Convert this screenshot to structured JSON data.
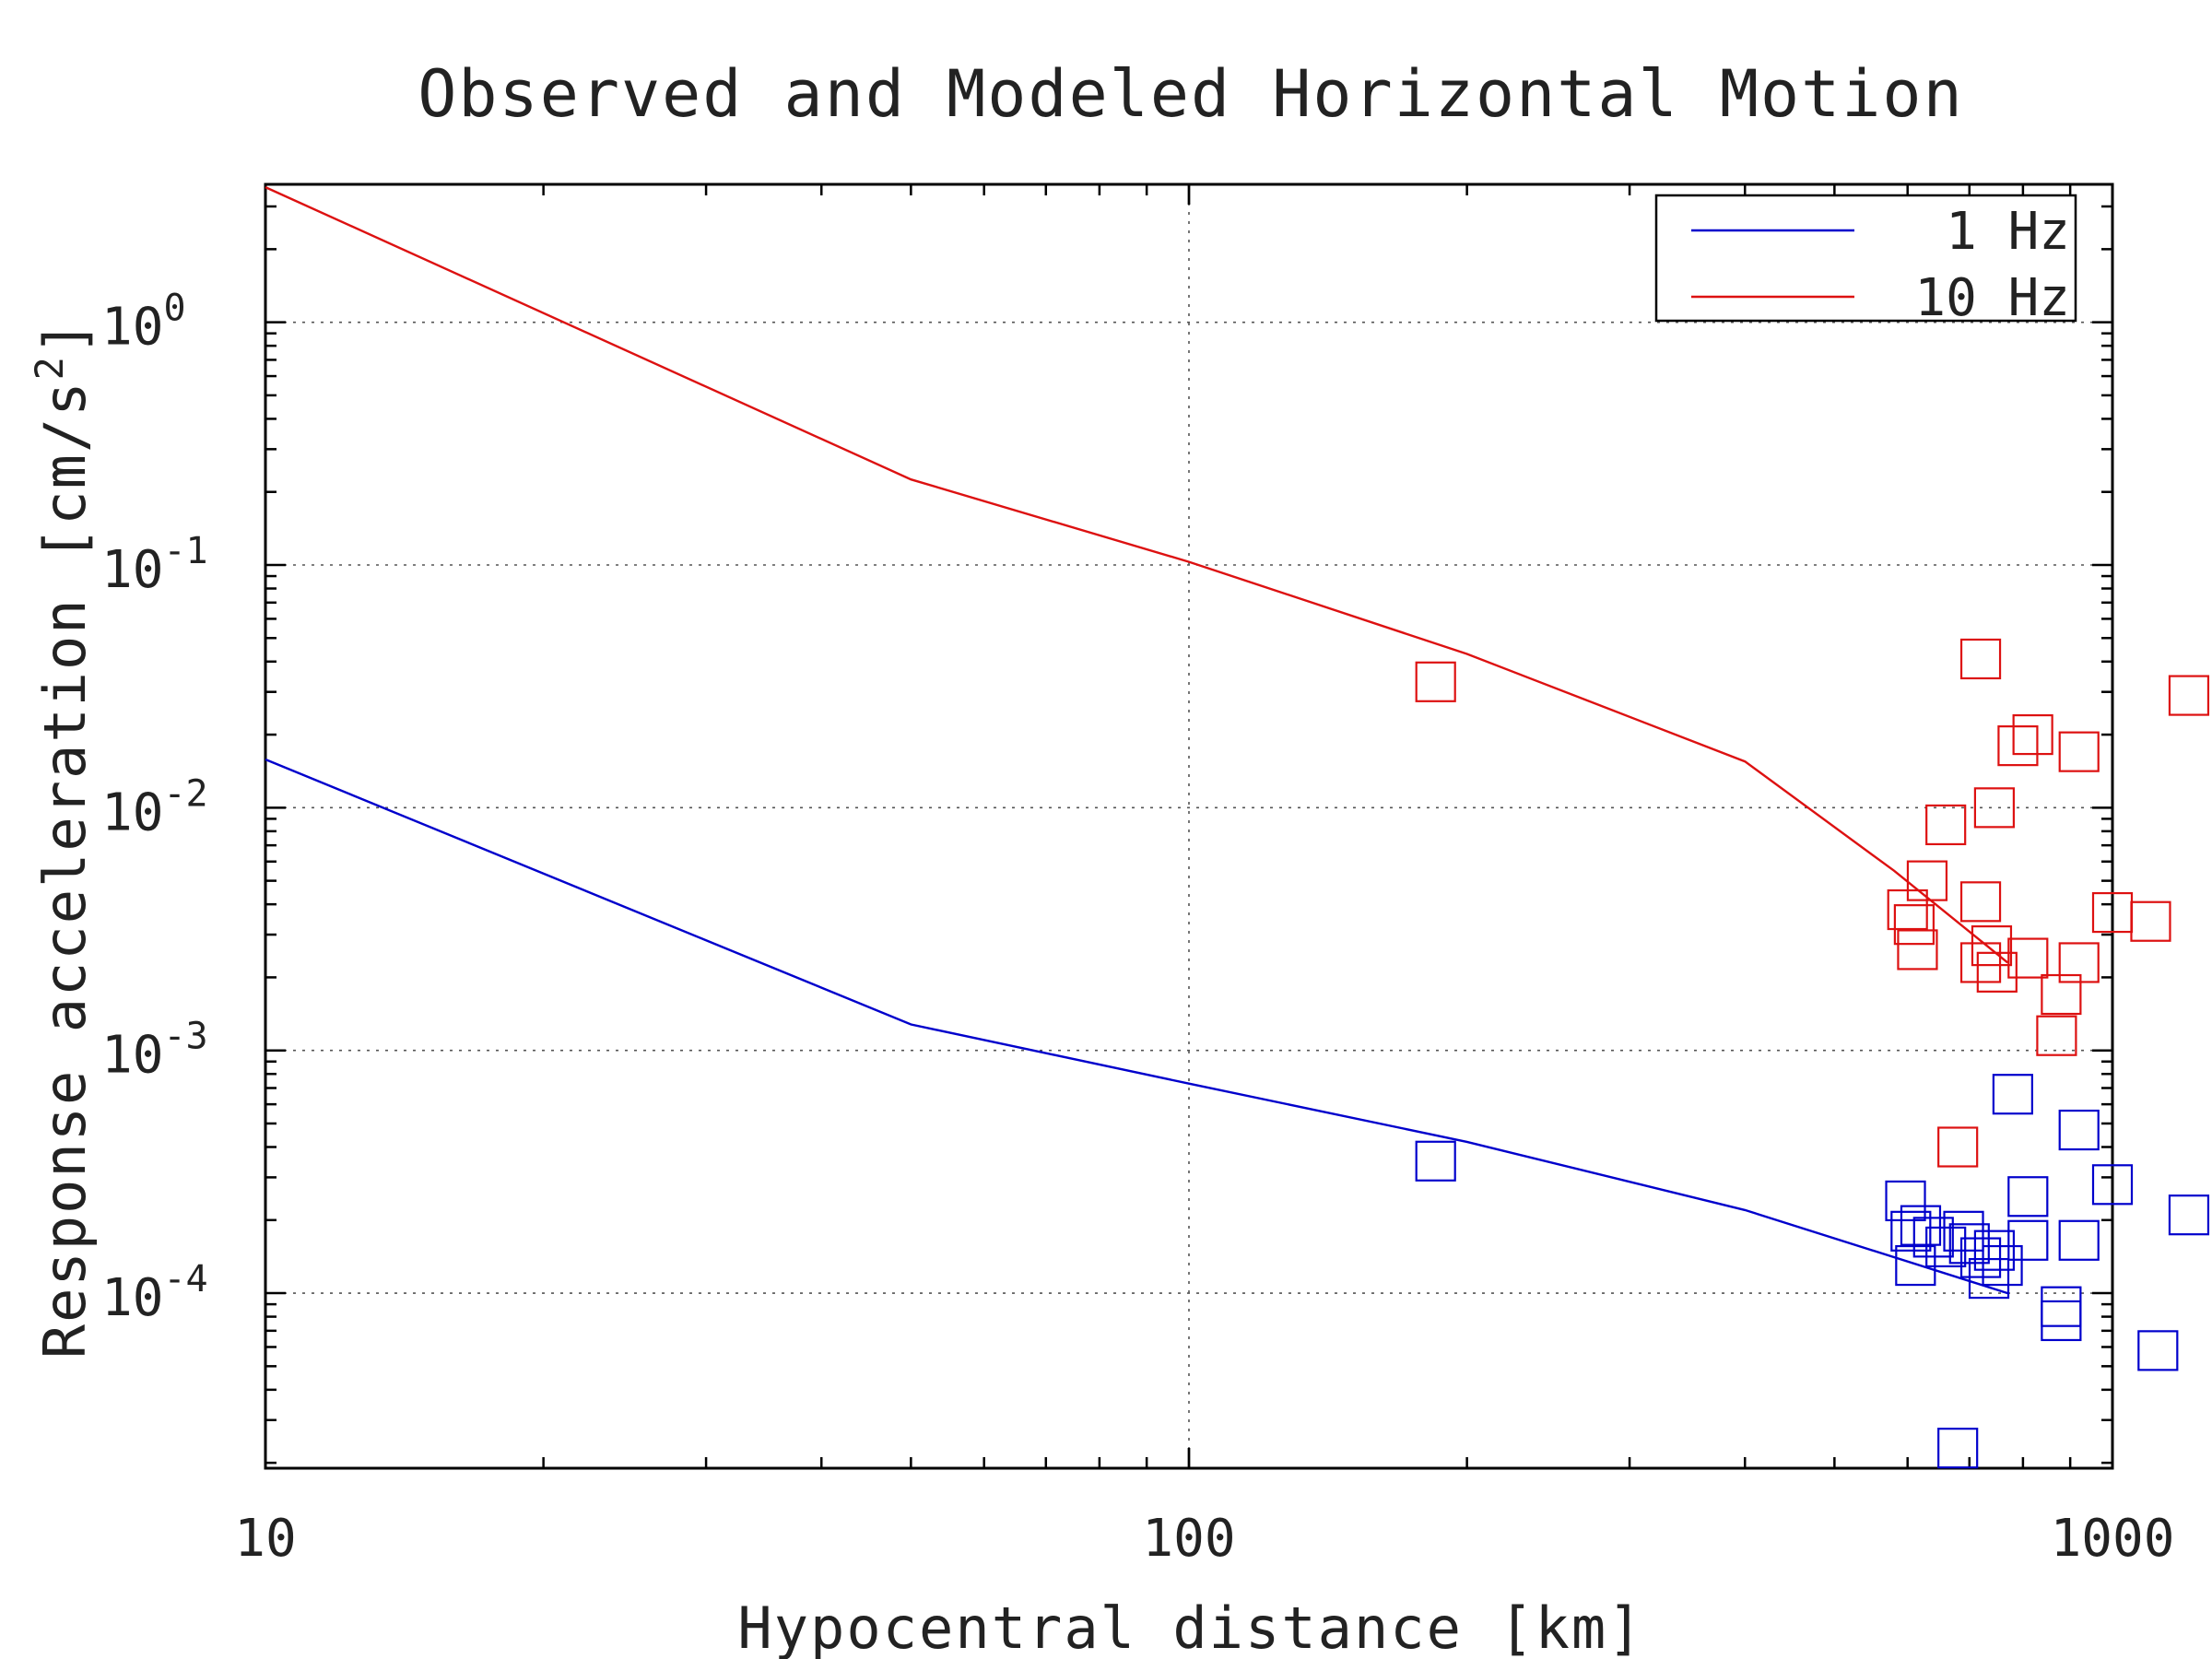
{
  "chart_data": {
    "type": "scatter",
    "title": "Observed and Modeled Horizontal Motion",
    "xlabel": "Hypocentral distance [km]",
    "ylabel": "Response acceleration [cm/s",
    "ylabel_sup": "2",
    "ylabel_end": "]",
    "x_scale": "log",
    "y_scale": "log",
    "xlim": [
      10,
      1000
    ],
    "ylim": [
      1.9e-05,
      3.7
    ],
    "grid": true,
    "legend_position": "top-right",
    "x_ticks": [
      "10",
      "100",
      "1000"
    ],
    "y_ticks": [
      {
        "base": "10",
        "exp": "0",
        "value": 1
      },
      {
        "base": "10",
        "exp": "-1",
        "value": 0.1
      },
      {
        "base": "10",
        "exp": "-2",
        "value": 0.01
      },
      {
        "base": "10",
        "exp": "-3",
        "value": 0.001
      },
      {
        "base": "10",
        "exp": "-4",
        "value": 0.0001
      }
    ],
    "series": [
      {
        "name": "1 Hz",
        "color": "#0000cc",
        "model_line": [
          [
            10,
            0.0158
          ],
          [
            50,
            0.00128
          ],
          [
            100,
            0.00073
          ],
          [
            200,
            0.00042
          ],
          [
            400,
            0.00022
          ],
          [
            770,
            0.0001
          ]
        ],
        "observed": [
          [
            185,
            0.00035
          ],
          [
            597,
            0.00024
          ],
          [
            605,
            0.00018
          ],
          [
            612,
            0.00013
          ],
          [
            620,
            0.00019
          ],
          [
            640,
            0.00017
          ],
          [
            660,
            0.000155
          ],
          [
            690,
            0.00018
          ],
          [
            700,
            0.00016
          ],
          [
            720,
            0.00014
          ],
          [
            735,
            0.000115
          ],
          [
            745,
            0.00015
          ],
          [
            760,
            0.00013
          ],
          [
            810,
            0.00025
          ],
          [
            810,
            0.000165
          ],
          [
            880,
            8.8e-05
          ],
          [
            880,
            7.7e-05
          ],
          [
            920,
            0.000165
          ],
          [
            920,
            0.00047
          ],
          [
            1000,
            0.00028
          ],
          [
            1120,
            5.8e-05
          ],
          [
            1210,
            0.00021
          ],
          [
            780,
            0.00066
          ],
          [
            680,
            2.3e-05
          ]
        ]
      },
      {
        "name": "10 Hz",
        "color": "#dd1111",
        "model_line": [
          [
            10,
            3.6
          ],
          [
            50,
            0.225
          ],
          [
            100,
            0.103
          ],
          [
            200,
            0.043
          ],
          [
            400,
            0.0155
          ],
          [
            580,
            0.0055
          ],
          [
            770,
            0.0023
          ]
        ],
        "observed": [
          [
            185,
            0.033
          ],
          [
            600,
            0.0038
          ],
          [
            610,
            0.0033
          ],
          [
            615,
            0.0026
          ],
          [
            630,
            0.005
          ],
          [
            660,
            0.0085
          ],
          [
            720,
            0.041
          ],
          [
            720,
            0.0041
          ],
          [
            720,
            0.0023
          ],
          [
            740,
            0.0027
          ],
          [
            745,
            0.01
          ],
          [
            750,
            0.0021
          ],
          [
            790,
            0.018
          ],
          [
            820,
            0.02
          ],
          [
            810,
            0.0024
          ],
          [
            920,
            0.017
          ],
          [
            920,
            0.0023
          ],
          [
            880,
            0.0017
          ],
          [
            870,
            0.00115
          ],
          [
            1000,
            0.0037
          ],
          [
            1100,
            0.0034
          ],
          [
            1210,
            0.029
          ],
          [
            680,
            0.0004
          ]
        ]
      }
    ]
  }
}
